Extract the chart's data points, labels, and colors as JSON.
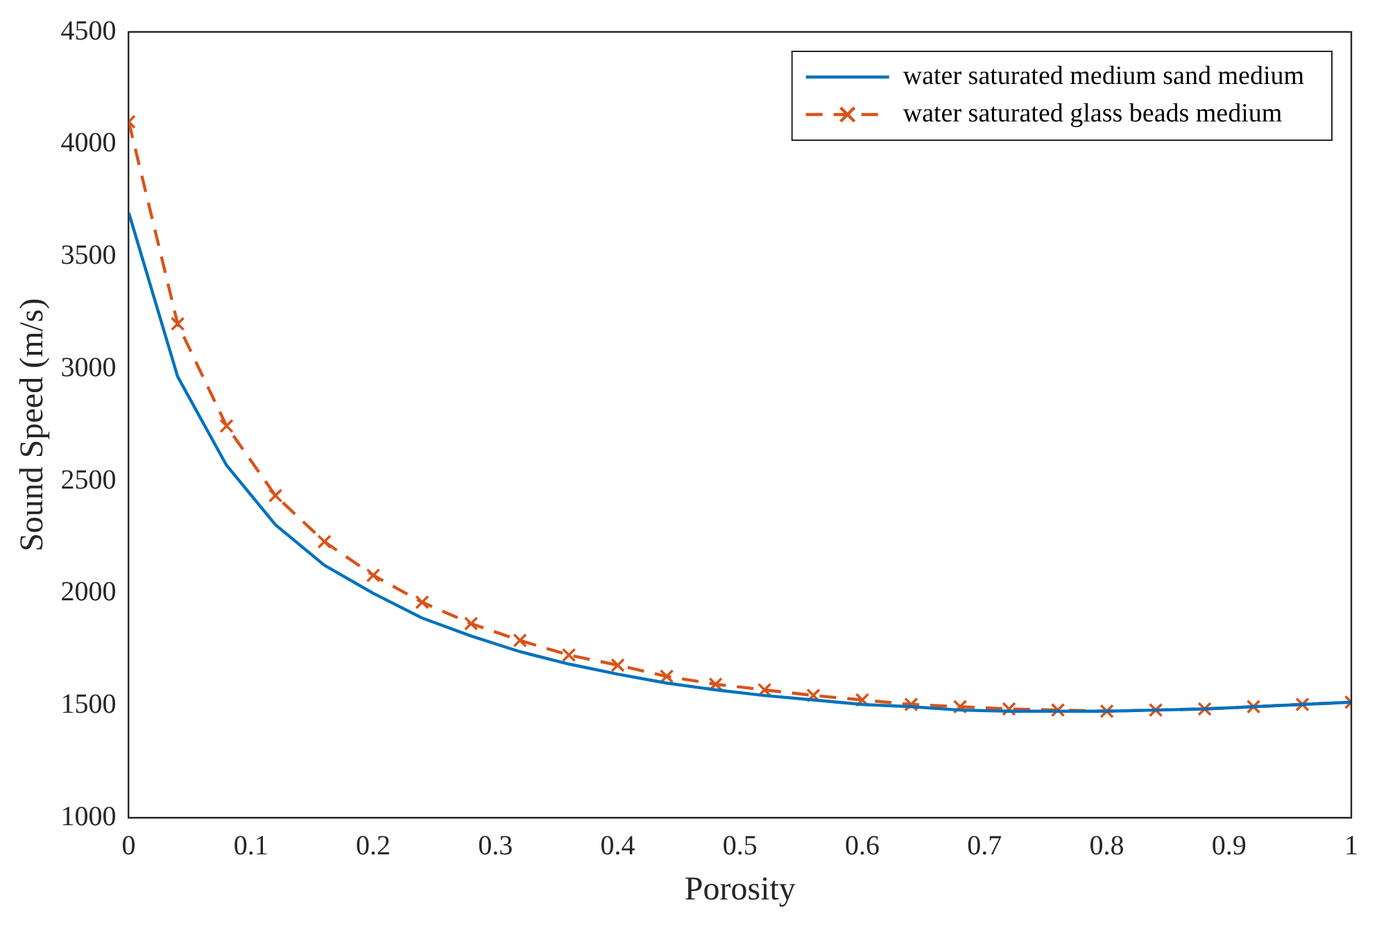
{
  "chart_data": {
    "type": "line",
    "xlabel": "Porosity",
    "ylabel": "Sound Speed (m/s)",
    "x": [
      0,
      0.04,
      0.08,
      0.12,
      0.16,
      0.2,
      0.24,
      0.28,
      0.32,
      0.36,
      0.4,
      0.44,
      0.48,
      0.52,
      0.56,
      0.6,
      0.64,
      0.68,
      0.72,
      0.76,
      0.8,
      0.84,
      0.88,
      0.92,
      0.96,
      1
    ],
    "series": [
      {
        "name": "water saturated medium sand medium",
        "color": "#0072bd",
        "line_style": "solid",
        "marker": "none",
        "values": [
          3695,
          2965,
          2570,
          2305,
          2125,
          2000,
          1890,
          1810,
          1740,
          1685,
          1640,
          1600,
          1570,
          1545,
          1525,
          1505,
          1495,
          1480,
          1475,
          1475,
          1475,
          1480,
          1485,
          1495,
          1505,
          1515
        ]
      },
      {
        "name": "water saturated glass beads medium",
        "color": "#d95319",
        "line_style": "dashed",
        "marker": "cross",
        "values": [
          4100,
          3200,
          2745,
          2435,
          2230,
          2080,
          1960,
          1865,
          1790,
          1725,
          1680,
          1630,
          1595,
          1570,
          1545,
          1525,
          1505,
          1495,
          1485,
          1480,
          1475,
          1480,
          1485,
          1495,
          1505,
          1515
        ]
      }
    ],
    "xlim": [
      0,
      1
    ],
    "xticks": [
      0,
      0.1,
      0.2,
      0.3,
      0.4,
      0.5,
      0.6,
      0.7,
      0.8,
      0.9,
      1
    ],
    "ylim": [
      1000,
      4500
    ],
    "yticks": [
      1000,
      1500,
      2000,
      2500,
      3000,
      3500,
      4000,
      4500
    ],
    "grid": false,
    "legend": "top right"
  }
}
